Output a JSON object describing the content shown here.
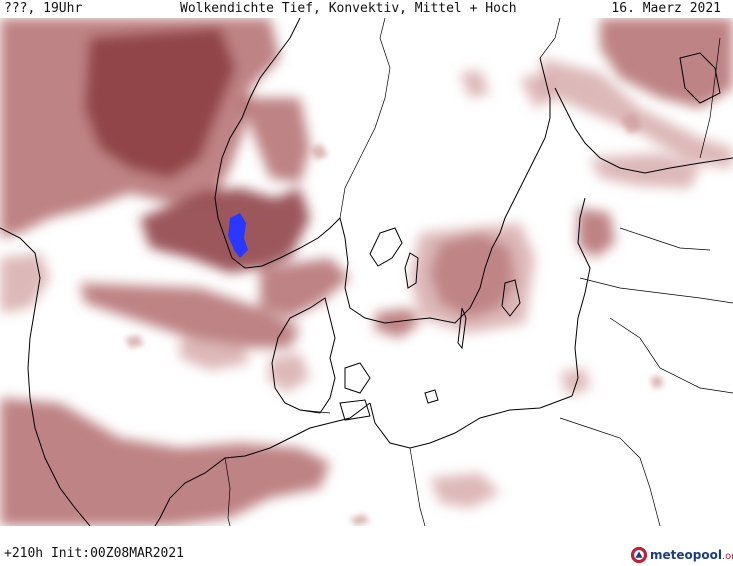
{
  "header": {
    "left": "???, 19Uhr",
    "title": "Wolkendichte  Tief, Konvektiv, Mittel + Hoch",
    "date": "16. Maerz 2021"
  },
  "footer": {
    "run": "+210h Init:00Z08MAR2021"
  },
  "brand": {
    "name": "meteopool",
    "domain": ".org",
    "icon": "meteopool-logo-icon"
  },
  "colors": {
    "cloud_dense": "#8a3a3e",
    "cloud_medium": "#a85a5c",
    "cloud_light": "#cf9a9a",
    "precip_blue": "#2a38ff",
    "coastline": "#000000",
    "background": "#ffffff"
  }
}
